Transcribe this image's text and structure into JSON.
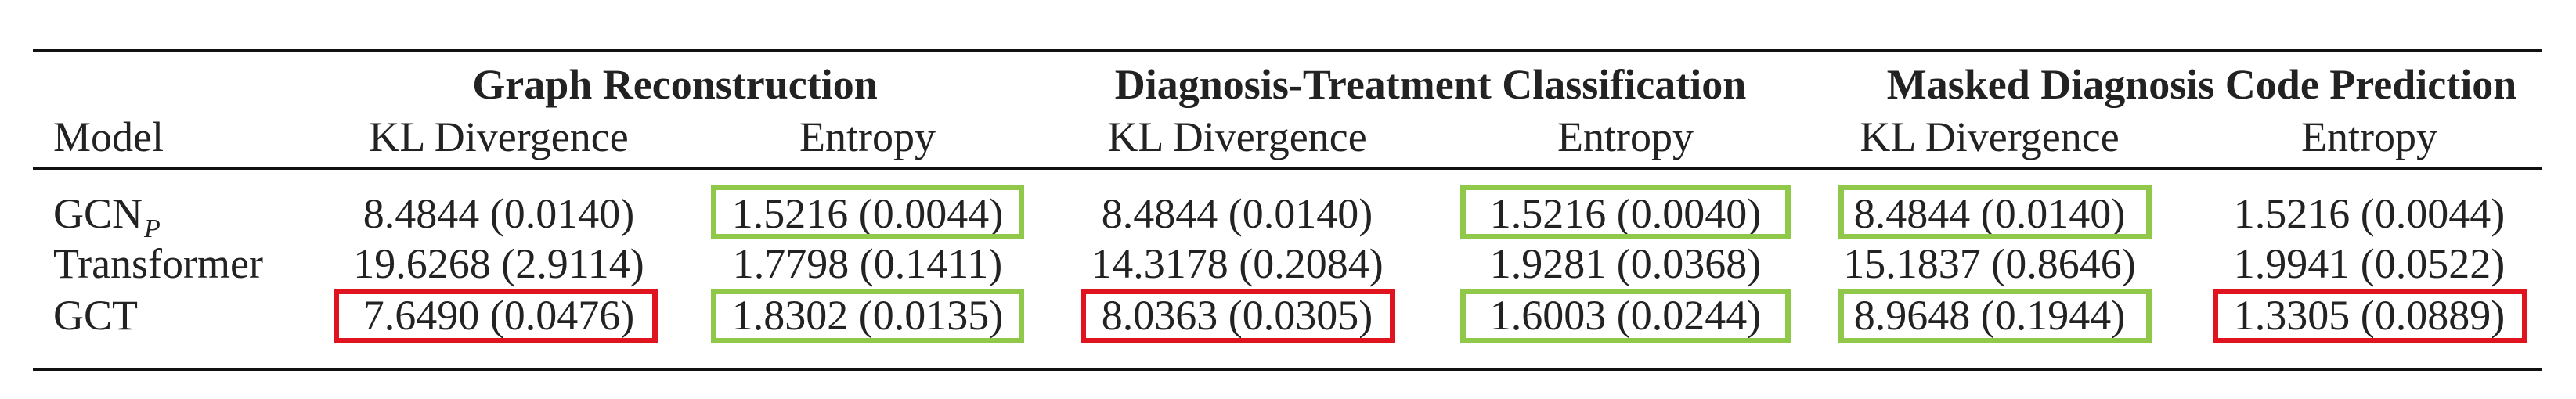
{
  "table": {
    "groups": [
      {
        "label": "Graph Reconstruction"
      },
      {
        "label": "Diagnosis-Treatment Classification"
      },
      {
        "label": "Masked Diagnosis Code Prediction"
      }
    ],
    "model_header": "Model",
    "subheaders": [
      "KL Divergence",
      "Entropy",
      "KL Divergence",
      "Entropy",
      "KL Divergence",
      "Entropy"
    ],
    "rows": [
      {
        "model": "GCN",
        "model_subscript": "P",
        "cells": [
          "8.4844 (0.0140)",
          "1.5216 (0.0044)",
          "8.4844 (0.0140)",
          "1.5216 (0.0040)",
          "8.4844 (0.0140)",
          "1.5216 (0.0044)"
        ],
        "highlights": [
          "none",
          "green",
          "none",
          "green",
          "green",
          "none"
        ]
      },
      {
        "model": "Transformer",
        "model_subscript": "",
        "cells": [
          "19.6268 (2.9114)",
          "1.7798 (0.1411)",
          "14.3178 (0.2084)",
          "1.9281 (0.0368)",
          "15.1837 (0.8646)",
          "1.9941 (0.0522)"
        ],
        "highlights": [
          "none",
          "none",
          "none",
          "none",
          "none",
          "none"
        ]
      },
      {
        "model": "GCT",
        "model_subscript": "",
        "cells": [
          "7.6490 (0.0476)",
          "1.8302 (0.0135)",
          "8.0363 (0.0305)",
          "1.6003 (0.0244)",
          "8.9648 (0.1944)",
          "1.3305 (0.0889)"
        ],
        "highlights": [
          "red",
          "green",
          "red",
          "green",
          "green",
          "red"
        ]
      }
    ],
    "colors": {
      "green_box": "#90c84a",
      "red_box": "#e0141e",
      "rule": "#111111",
      "text": "#222222"
    }
  }
}
